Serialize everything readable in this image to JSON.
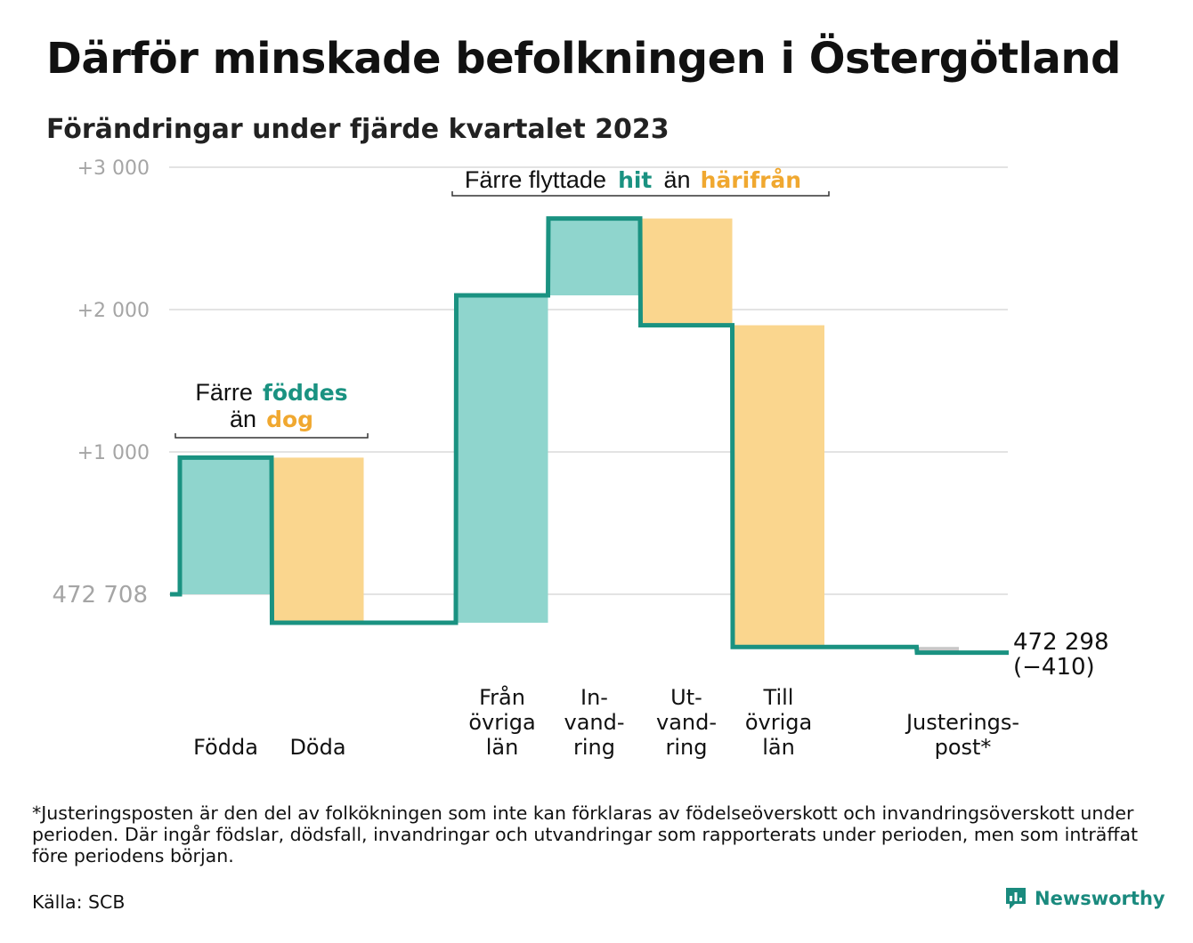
{
  "title": "Därför minskade befolkningen i Östergötland",
  "subtitle": "Förändringar under fjärde kvartalet 2023",
  "colors": {
    "increase": "#8fd5cd",
    "decrease": "#fad68e",
    "line": "#1a9281",
    "adjust": "#c8c8c8",
    "teal_text": "#1a9281",
    "orange_text": "#f0a830",
    "grid": "#e3e3e3"
  },
  "start_label": "472 708",
  "end_label": [
    "472 298",
    "(−410)"
  ],
  "annotations": {
    "births": {
      "prefix": "Färre",
      "teal": "föddes",
      "mid": "än",
      "orange": "dog"
    },
    "moves": {
      "prefix": "Färre flyttade",
      "teal": "hit",
      "mid": "än",
      "orange": "härifrån"
    }
  },
  "chart_data": {
    "type": "waterfall",
    "title": "Därför minskade befolkningen i Östergötland",
    "subtitle": "Förändringar under fjärde kvartalet 2023",
    "baseline": 472708,
    "ylim": [
      -600,
      3000
    ],
    "yticks": [
      {
        "value": 3000,
        "label": "+3 000"
      },
      {
        "value": 2000,
        "label": "+2 000"
      },
      {
        "value": 1000,
        "label": "+1 000"
      },
      {
        "value": 0,
        "label": "472 708"
      }
    ],
    "grid": true,
    "steps": [
      {
        "label": [
          "Födda"
        ],
        "value": 960,
        "kind": "increase"
      },
      {
        "label": [
          "Döda"
        ],
        "value": -1160,
        "kind": "decrease"
      },
      {
        "label": [],
        "value": 0,
        "kind": "gap"
      },
      {
        "label": [
          "Från",
          "övriga",
          "län"
        ],
        "value": 2300,
        "kind": "increase"
      },
      {
        "label": [
          "In-",
          "vand-",
          "ring"
        ],
        "value": 540,
        "kind": "increase"
      },
      {
        "label": [
          "Ut-",
          "vand-",
          "ring"
        ],
        "value": -750,
        "kind": "decrease"
      },
      {
        "label": [
          "Till",
          "övriga",
          "län"
        ],
        "value": -2260,
        "kind": "decrease"
      },
      {
        "label": [],
        "value": 0,
        "kind": "gap"
      },
      {
        "label": [
          "Justerings-",
          "post*"
        ],
        "value": -40,
        "kind": "adjust"
      }
    ],
    "end_value": 472298,
    "total_change": -410
  },
  "footnote": "*Justeringsposten är den del av folkökningen som inte kan förklaras av födelseöverskott och invandringsöverskott under perioden. Där ingår födslar, dödsfall, invandringar och utvandringar som rapporterats under perioden, men som inträffat före periodens början.",
  "source": "Källa: SCB",
  "brand": {
    "name": "Newsworthy",
    "icon": "newsworthy-logo-icon"
  }
}
